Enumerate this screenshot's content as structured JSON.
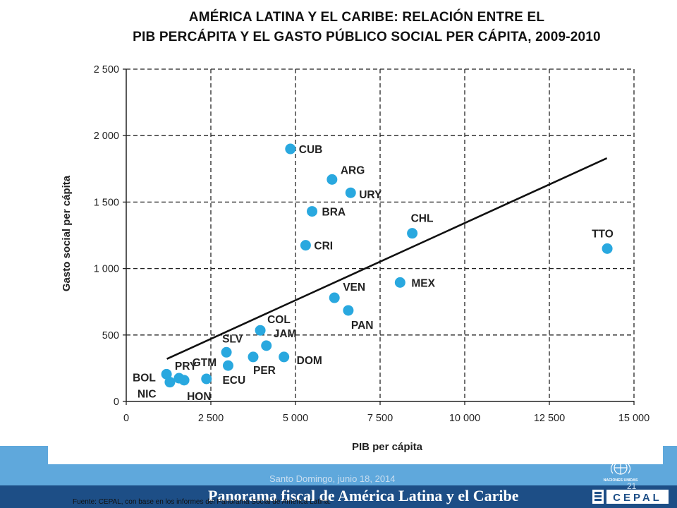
{
  "title": {
    "line1": "AMÉRICA LATINA Y EL CARIBE: RELACIÓN ENTRE EL",
    "line2": "PIB PERCÁPITA Y EL GASTO PÚBLICO SOCIAL PER CÁPITA, 2009-2010"
  },
  "chart_data": {
    "type": "scatter",
    "title": "AMÉRICA LATINA Y EL CARIBE: RELACIÓN ENTRE EL PIB PERCÁPITA Y EL GASTO PÚBLICO SOCIAL PER CÁPITA, 2009-2010",
    "xlabel": "PIB per cápita",
    "ylabel": "Gasto social per cápita",
    "xlim": [
      0,
      15000
    ],
    "ylim": [
      0,
      2500
    ],
    "xticks": [
      0,
      2500,
      5000,
      7500,
      10000,
      12500,
      15000
    ],
    "xtick_labels": [
      "0",
      "2 500",
      "5 000",
      "7 500",
      "10 000",
      "12 500",
      "15 000"
    ],
    "yticks": [
      0,
      500,
      1000,
      1500,
      2000,
      2500
    ],
    "ytick_labels": [
      "0",
      "500",
      "1 000",
      "1 500",
      "2 000",
      "2 500"
    ],
    "grid": "dashed",
    "points": [
      {
        "label": "BOL",
        "x": 1190,
        "y": 205
      },
      {
        "label": "NIC",
        "x": 1290,
        "y": 145
      },
      {
        "label": "PRY",
        "x": 1560,
        "y": 175
      },
      {
        "label": "HON",
        "x": 1710,
        "y": 160
      },
      {
        "label": "GTM",
        "x": 2370,
        "y": 170
      },
      {
        "label": "SLV",
        "x": 2960,
        "y": 370
      },
      {
        "label": "ECU",
        "x": 3010,
        "y": 270
      },
      {
        "label": "PER",
        "x": 3750,
        "y": 335
      },
      {
        "label": "COL",
        "x": 3960,
        "y": 535
      },
      {
        "label": "JAM",
        "x": 4140,
        "y": 420
      },
      {
        "label": "DOM",
        "x": 4660,
        "y": 335
      },
      {
        "label": "CUB",
        "x": 4850,
        "y": 1900
      },
      {
        "label": "CRI",
        "x": 5300,
        "y": 1175
      },
      {
        "label": "BRA",
        "x": 5490,
        "y": 1430
      },
      {
        "label": "ARG",
        "x": 6080,
        "y": 1670
      },
      {
        "label": "VEN",
        "x": 6150,
        "y": 780
      },
      {
        "label": "PAN",
        "x": 6560,
        "y": 685
      },
      {
        "label": "URY",
        "x": 6630,
        "y": 1570
      },
      {
        "label": "MEX",
        "x": 8090,
        "y": 895
      },
      {
        "label": "CHL",
        "x": 8450,
        "y": 1265
      },
      {
        "label": "TTO",
        "x": 14210,
        "y": 1150
      }
    ],
    "trend_line": {
      "x1": 1200,
      "y1": 320,
      "x2": 14200,
      "y2": 1830
    }
  },
  "footer": {
    "title": "Panorama fiscal de América Latina y el Caribe",
    "location": "Santo Domingo, junio 18, 2014",
    "page": "21",
    "source": "Fuente: CEPAL, con base en los informes del Panorama Social de América Latina.",
    "un_label": "NACIONES UNIDAS",
    "cepal_label": "CEPAL"
  },
  "colors": {
    "point": "#29a8df",
    "band": "#5fa8dc",
    "footer_bar": "#1d4e86"
  }
}
